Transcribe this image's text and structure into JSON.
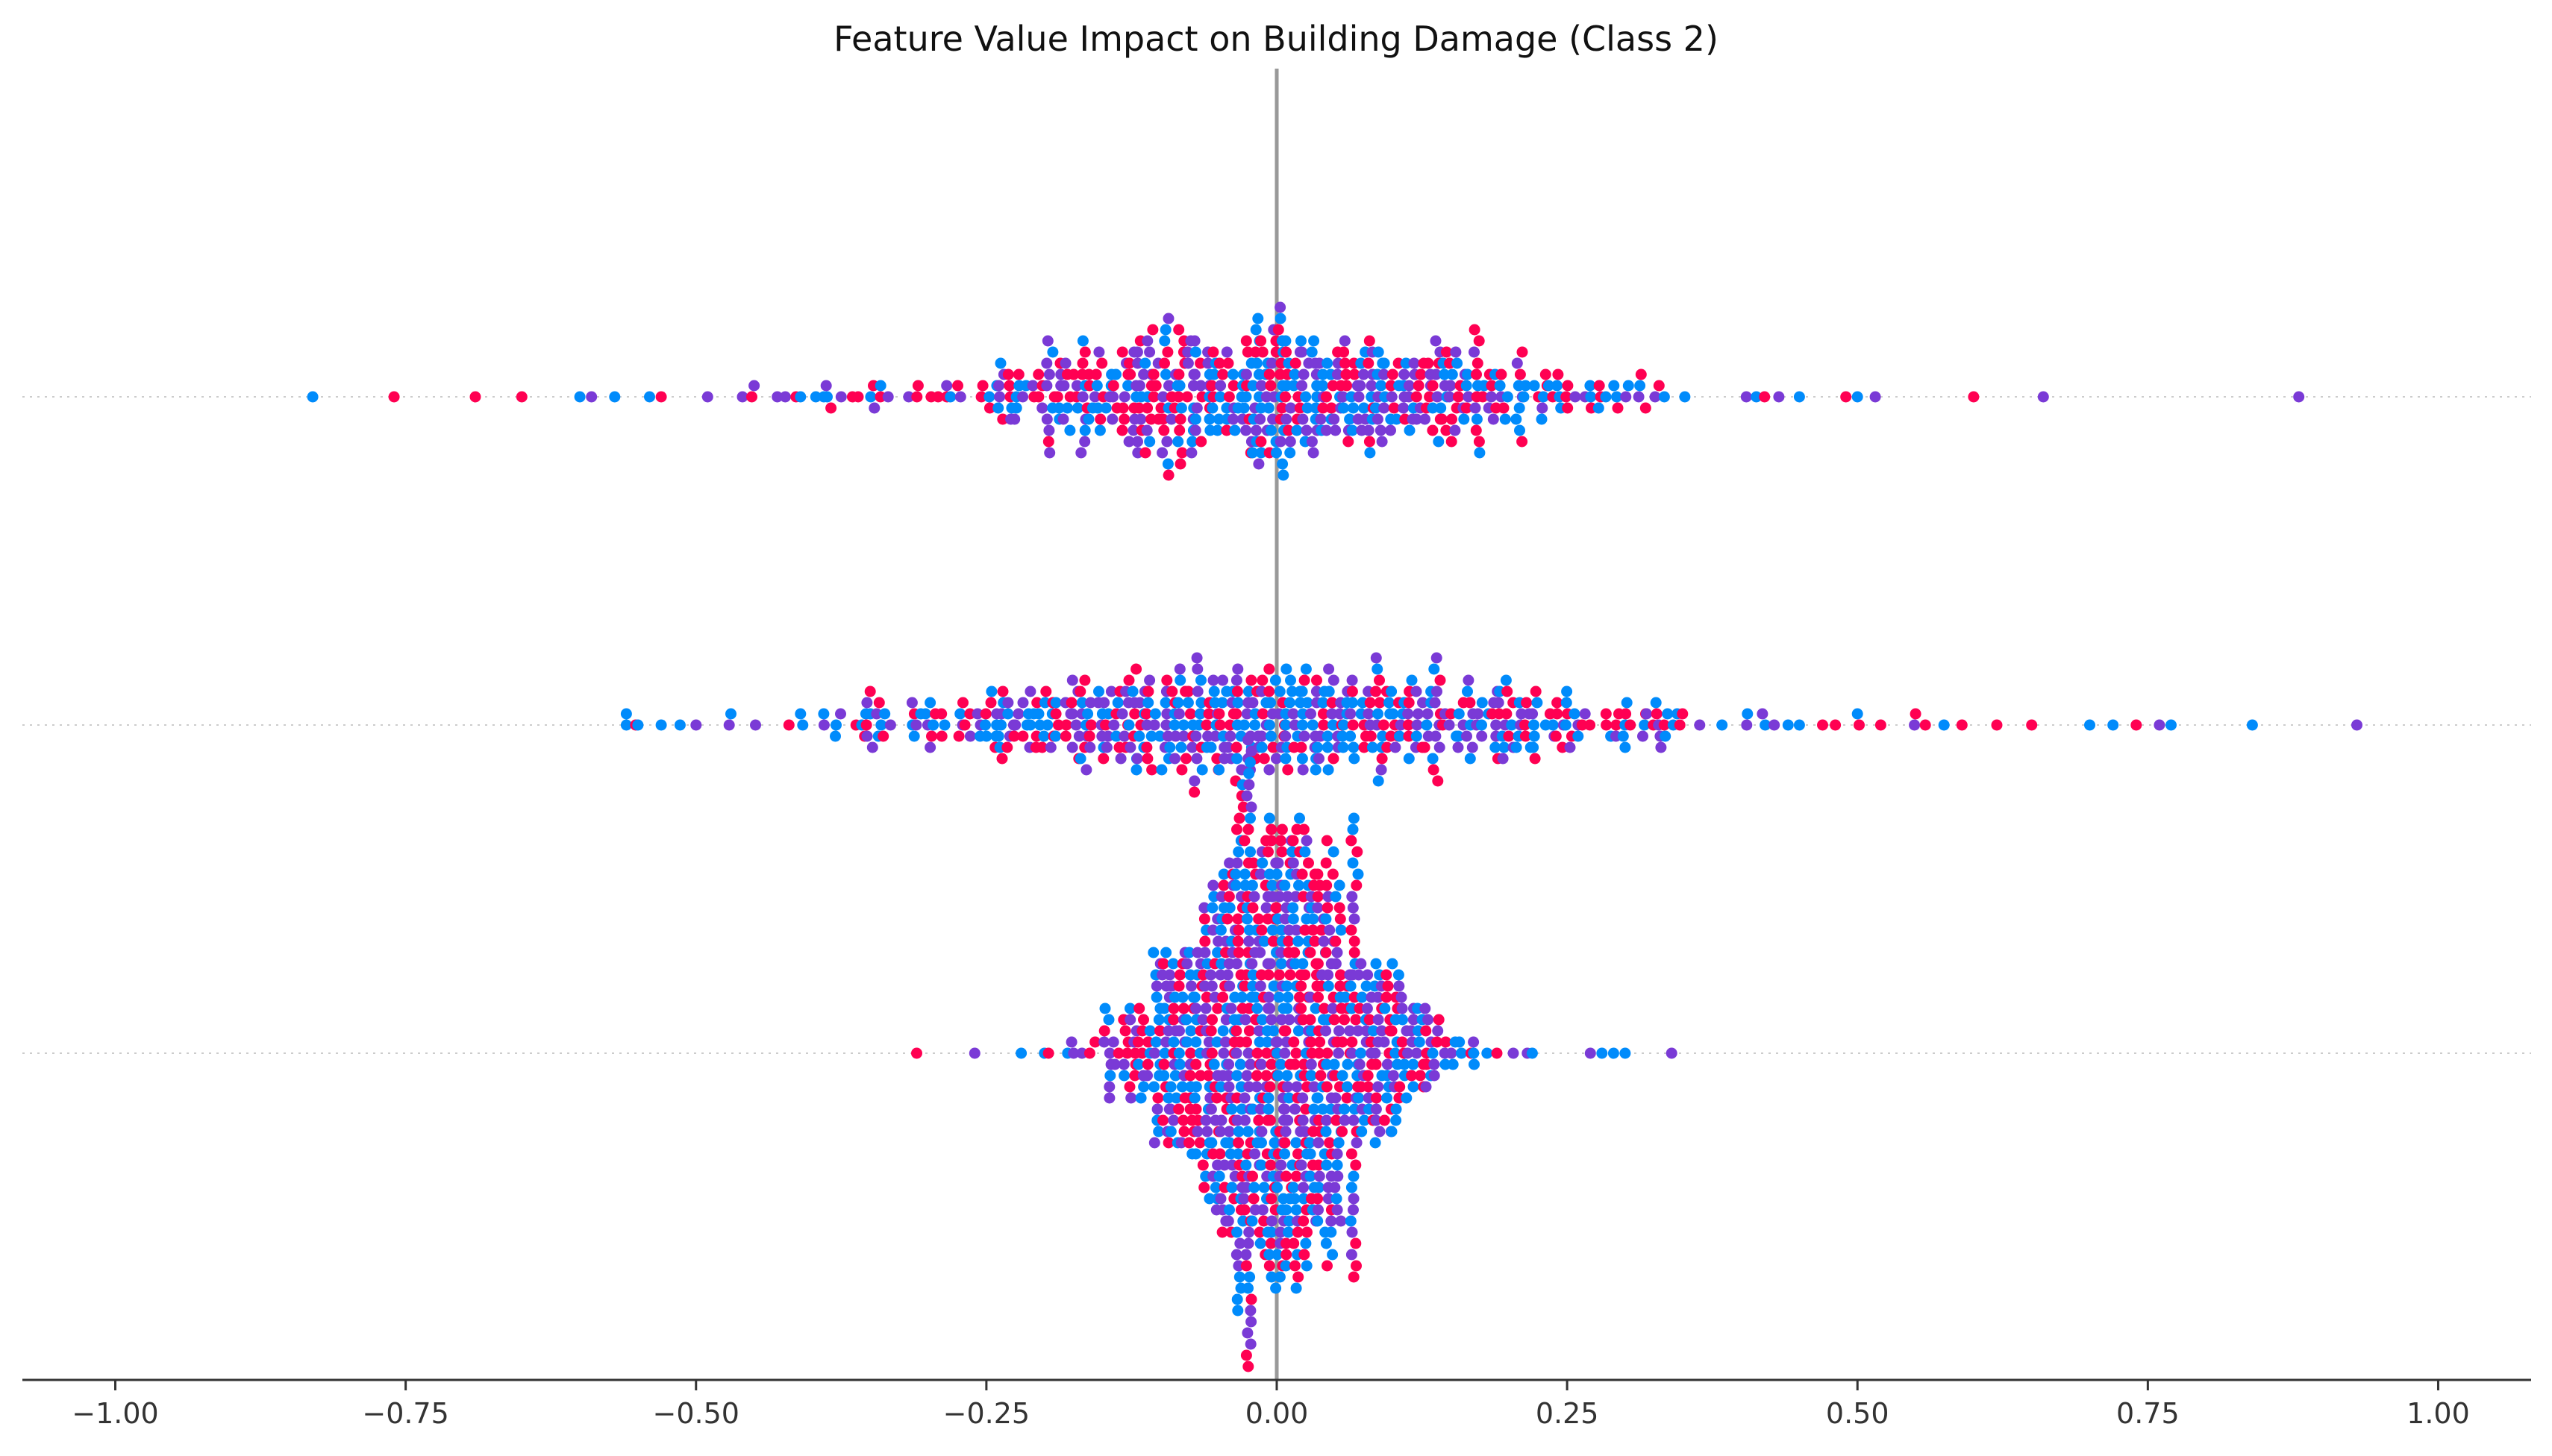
{
  "chart_data": {
    "type": "scatter",
    "subtype": "beeswarm",
    "title": "Feature Value Impact on Building Damage (Class 2)",
    "xlabel": "",
    "ylabel": "",
    "xlim": [
      -1.08,
      1.08
    ],
    "x_ticks": [
      -1.0,
      -0.75,
      -0.5,
      -0.25,
      0.0,
      0.25,
      0.5,
      0.75,
      1.0
    ],
    "x_tick_labels": [
      "−1.00",
      "−0.75",
      "−0.50",
      "−0.25",
      "0.00",
      "0.25",
      "0.50",
      "0.75",
      "1.00"
    ],
    "grid": false,
    "legend": "none",
    "reference_line_x": 0.0,
    "rows": 3,
    "color_scale": [
      "#008bfb",
      "#7a3ad6",
      "#ff0052"
    ],
    "series": [
      {
        "row": 1,
        "points": 600,
        "min": -0.83,
        "max": 0.88,
        "spread": 0.16,
        "outliers": [
          -0.83,
          -0.76,
          -0.69,
          -0.65,
          -0.6,
          -0.59,
          -0.57,
          -0.54,
          -0.53,
          -0.49,
          -0.46,
          -0.45,
          -0.43,
          -0.41,
          -0.39,
          0.42,
          0.45,
          0.49,
          0.5,
          0.6,
          0.66,
          0.88
        ]
      },
      {
        "row": 2,
        "points": 600,
        "min": -0.56,
        "max": 0.93,
        "spread": 0.19,
        "outliers": [
          -0.56,
          -0.55,
          -0.53,
          -0.5,
          -0.47,
          -0.42,
          -0.41,
          -0.38,
          -0.35,
          0.45,
          0.47,
          0.5,
          0.52,
          0.55,
          0.59,
          0.62,
          0.65,
          0.7,
          0.72,
          0.74,
          0.76,
          0.77,
          0.84,
          0.93
        ]
      },
      {
        "row": 3,
        "points": 1000,
        "min": -0.31,
        "max": 0.34,
        "spread": 0.065,
        "outliers": [
          -0.31,
          -0.26,
          -0.22,
          -0.2,
          -0.18,
          0.22,
          0.27,
          0.28,
          0.29,
          0.3,
          0.34
        ]
      }
    ]
  }
}
